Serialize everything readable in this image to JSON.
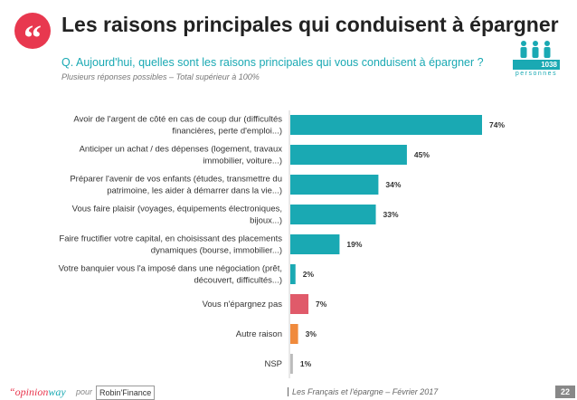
{
  "header": {
    "quote_glyph": "“",
    "title": "Les raisons principales qui conduisent à épargner",
    "question": "Q. Aujourd'hui, quelles sont les raisons principales qui vous conduisent à épargner ?",
    "note": "Plusieurs réponses possibles – Total supérieur à 100%"
  },
  "sample": {
    "count": "1038",
    "label": "personnes"
  },
  "chart_data": {
    "type": "bar",
    "orientation": "horizontal",
    "categories": [
      [
        "Avoir de l'argent de côté en cas de coup dur (difficultés",
        "financières, perte d'emploi...)"
      ],
      [
        "Anticiper un achat / des dépenses (logement, travaux",
        "immobilier, voiture...)"
      ],
      [
        "Préparer l'avenir de vos enfants (études, transmettre du",
        "patrimoine, les aider à démarrer dans la vie...)"
      ],
      [
        "Vous faire plaisir (voyages, équipements électroniques,",
        "bijoux...)"
      ],
      [
        "Faire fructifier votre capital, en choisissant des placements",
        "dynamiques (bourse, immobilier...)"
      ],
      [
        "Votre banquier vous l'a imposé dans une négociation (prêt,",
        "découvert, difficultés...)"
      ],
      [
        "Vous n'épargnez pas"
      ],
      [
        "Autre raison"
      ],
      [
        "NSP"
      ]
    ],
    "values": [
      74,
      45,
      34,
      33,
      19,
      2,
      7,
      3,
      1
    ],
    "value_labels": [
      "74%",
      "45%",
      "34%",
      "33%",
      "19%",
      "2%",
      "7%",
      "3%",
      "1%"
    ],
    "colors": [
      "#1aa9b3",
      "#1aa9b3",
      "#1aa9b3",
      "#1aa9b3",
      "#1aa9b3",
      "#1aa9b3",
      "#e05a6a",
      "#f08a3c",
      "#bbbbbb"
    ],
    "xlim": [
      0,
      100
    ]
  },
  "footer": {
    "brand_main": "“opinion",
    "brand_accent": "way",
    "pour": "pour",
    "partner": "Robin'Finance",
    "text": "Les Français et l'épargne – Février 2017",
    "page": "22"
  }
}
